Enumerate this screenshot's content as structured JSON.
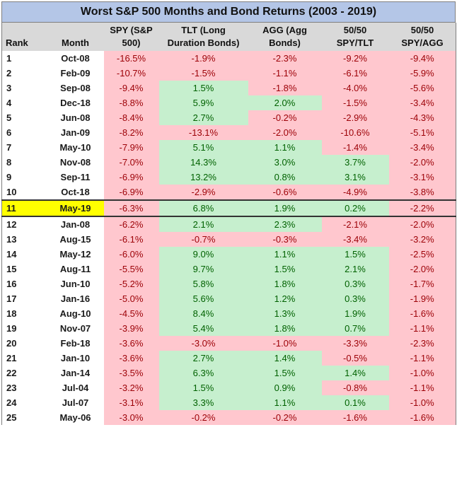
{
  "title": "Worst S&P 500 Months and Bond Returns (2003 - 2019)",
  "headers": [
    [
      "",
      "Rank"
    ],
    [
      "",
      "Month"
    ],
    [
      "SPY (S&P",
      "500)"
    ],
    [
      "TLT (Long",
      "Duration Bonds)"
    ],
    [
      "AGG (Agg",
      "Bonds)"
    ],
    [
      "50/50",
      "SPY/TLT"
    ],
    [
      "50/50",
      "SPY/AGG"
    ]
  ],
  "colors": {
    "negative_bg": "#ffc7ce",
    "positive_bg": "#c6efce",
    "highlight": "#ffff00",
    "title_bg": "#b4c6e7"
  },
  "highlight_rank": "11",
  "rows": [
    [
      "1",
      "Oct-08",
      "-16.5%",
      "-1.9%",
      "-2.3%",
      "-9.2%",
      "-9.4%"
    ],
    [
      "2",
      "Feb-09",
      "-10.7%",
      "-1.5%",
      "-1.1%",
      "-6.1%",
      "-5.9%"
    ],
    [
      "3",
      "Sep-08",
      "-9.4%",
      "1.5%",
      "-1.8%",
      "-4.0%",
      "-5.6%"
    ],
    [
      "4",
      "Dec-18",
      "-8.8%",
      "5.9%",
      "2.0%",
      "-1.5%",
      "-3.4%"
    ],
    [
      "5",
      "Jun-08",
      "-8.4%",
      "2.7%",
      "-0.2%",
      "-2.9%",
      "-4.3%"
    ],
    [
      "6",
      "Jan-09",
      "-8.2%",
      "-13.1%",
      "-2.0%",
      "-10.6%",
      "-5.1%"
    ],
    [
      "7",
      "May-10",
      "-7.9%",
      "5.1%",
      "1.1%",
      "-1.4%",
      "-3.4%"
    ],
    [
      "8",
      "Nov-08",
      "-7.0%",
      "14.3%",
      "3.0%",
      "3.7%",
      "-2.0%"
    ],
    [
      "9",
      "Sep-11",
      "-6.9%",
      "13.2%",
      "0.8%",
      "3.1%",
      "-3.1%"
    ],
    [
      "10",
      "Oct-18",
      "-6.9%",
      "-2.9%",
      "-0.6%",
      "-4.9%",
      "-3.8%"
    ],
    [
      "11",
      "May-19",
      "-6.3%",
      "6.8%",
      "1.9%",
      "0.2%",
      "-2.2%"
    ],
    [
      "12",
      "Jan-08",
      "-6.2%",
      "2.1%",
      "2.3%",
      "-2.1%",
      "-2.0%"
    ],
    [
      "13",
      "Aug-15",
      "-6.1%",
      "-0.7%",
      "-0.3%",
      "-3.4%",
      "-3.2%"
    ],
    [
      "14",
      "May-12",
      "-6.0%",
      "9.0%",
      "1.1%",
      "1.5%",
      "-2.5%"
    ],
    [
      "15",
      "Aug-11",
      "-5.5%",
      "9.7%",
      "1.5%",
      "2.1%",
      "-2.0%"
    ],
    [
      "16",
      "Jun-10",
      "-5.2%",
      "5.8%",
      "1.8%",
      "0.3%",
      "-1.7%"
    ],
    [
      "17",
      "Jan-16",
      "-5.0%",
      "5.6%",
      "1.2%",
      "0.3%",
      "-1.9%"
    ],
    [
      "18",
      "Aug-10",
      "-4.5%",
      "8.4%",
      "1.3%",
      "1.9%",
      "-1.6%"
    ],
    [
      "19",
      "Nov-07",
      "-3.9%",
      "5.4%",
      "1.8%",
      "0.7%",
      "-1.1%"
    ],
    [
      "20",
      "Feb-18",
      "-3.6%",
      "-3.0%",
      "-1.0%",
      "-3.3%",
      "-2.3%"
    ],
    [
      "21",
      "Jan-10",
      "-3.6%",
      "2.7%",
      "1.4%",
      "-0.5%",
      "-1.1%"
    ],
    [
      "22",
      "Jan-14",
      "-3.5%",
      "6.3%",
      "1.5%",
      "1.4%",
      "-1.0%"
    ],
    [
      "23",
      "Jul-04",
      "-3.2%",
      "1.5%",
      "0.9%",
      "-0.8%",
      "-1.1%"
    ],
    [
      "24",
      "Jul-07",
      "-3.1%",
      "3.3%",
      "1.1%",
      "0.1%",
      "-1.0%"
    ],
    [
      "25",
      "May-06",
      "-3.0%",
      "-0.2%",
      "-0.2%",
      "-1.6%",
      "-1.6%"
    ]
  ]
}
